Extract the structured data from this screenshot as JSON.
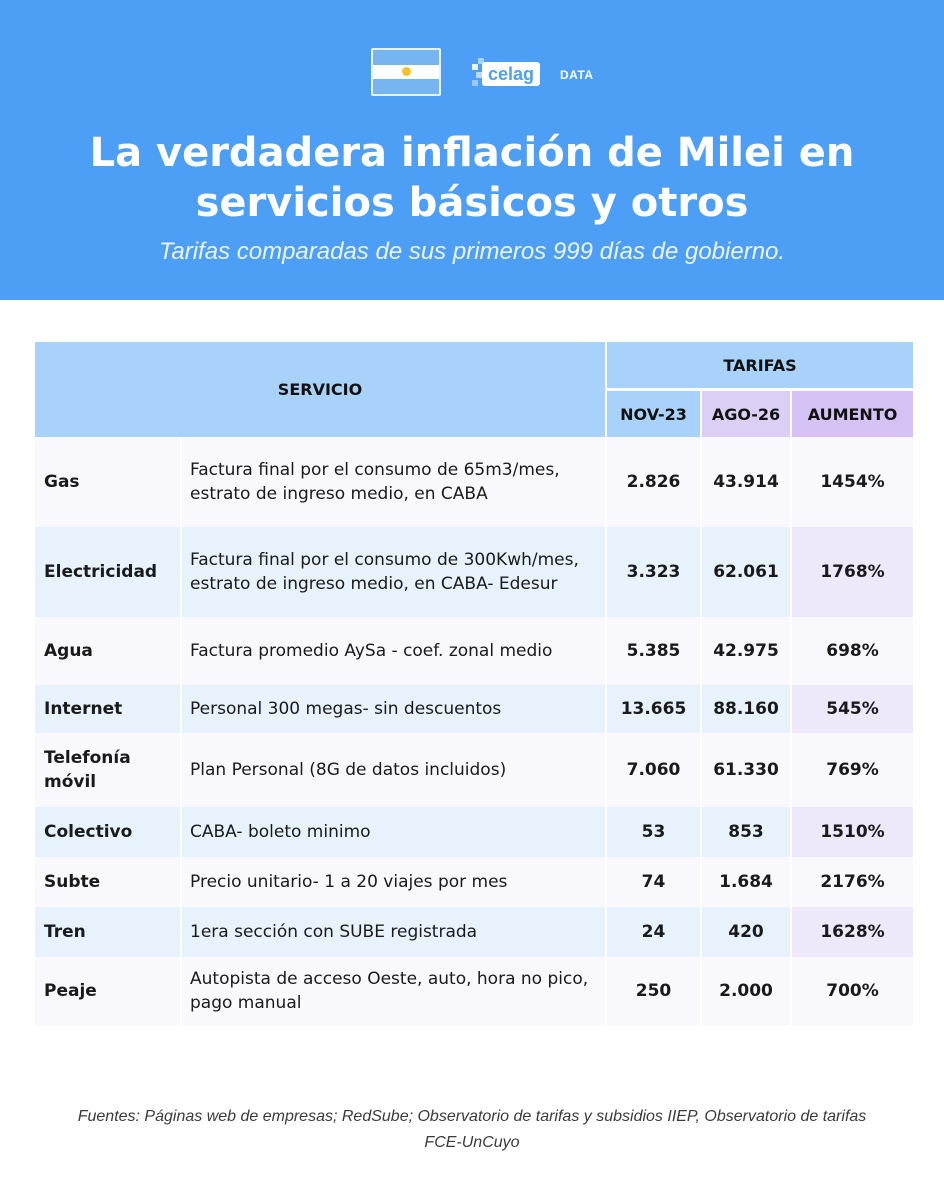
{
  "header": {
    "logo_text": "celag",
    "logo_suffix": "DATA",
    "title_line1": "La verdadera inflación de Milei en",
    "title_line2": "servicios básicos y otros",
    "subtitle": "Tarifas comparadas de sus primeros 999 días de gobierno."
  },
  "table": {
    "col_servicio": "SERVICIO",
    "col_tarifas": "TARIFAS",
    "col_nov": "NOV-23",
    "col_ago": "AGO-26",
    "col_aumento": "AUMENTO",
    "rows": [
      {
        "name": "Gas",
        "desc": "Factura final por el consumo de 65m3/mes, estrato de ingreso medio, en CABA",
        "nov": "2.826",
        "ago": "43.914",
        "aumento": "1454%"
      },
      {
        "name": "Electricidad",
        "desc": "Factura final por el consumo de 300Kwh/mes, estrato de ingreso medio, en CABA- Edesur",
        "nov": "3.323",
        "ago": "62.061",
        "aumento": "1768%"
      },
      {
        "name": "Agua",
        "desc": "Factura promedio AySa - coef. zonal medio",
        "nov": "5.385",
        "ago": "42.975",
        "aumento": "698%"
      },
      {
        "name": "Internet",
        "desc": "Personal 300 megas- sin descuentos",
        "nov": "13.665",
        "ago": "88.160",
        "aumento": "545%"
      },
      {
        "name": "Telefonía móvil",
        "desc": "Plan Personal (8G de datos incluidos)",
        "nov": "7.060",
        "ago": "61.330",
        "aumento": "769%"
      },
      {
        "name": "Colectivo",
        "desc": "CABA- boleto minimo",
        "nov": "53",
        "ago": "853",
        "aumento": "1510%"
      },
      {
        "name": "Subte",
        "desc": "Precio unitario- 1 a 20 viajes por mes",
        "nov": "74",
        "ago": "1.684",
        "aumento": "2176%"
      },
      {
        "name": "Tren",
        "desc": "1era sección con SUBE registrada",
        "nov": "24",
        "ago": "420",
        "aumento": "1628%"
      },
      {
        "name": "Peaje",
        "desc": "Autopista de acceso Oeste, auto, hora no pico, pago manual",
        "nov": "250",
        "ago": "2.000",
        "aumento": "700%"
      }
    ]
  },
  "footer": {
    "sources": "Fuentes: Páginas web de empresas; RedSube; Observatorio de tarifas y subsidios IIEP, Observatorio de tarifas FCE-UnCuyo"
  }
}
